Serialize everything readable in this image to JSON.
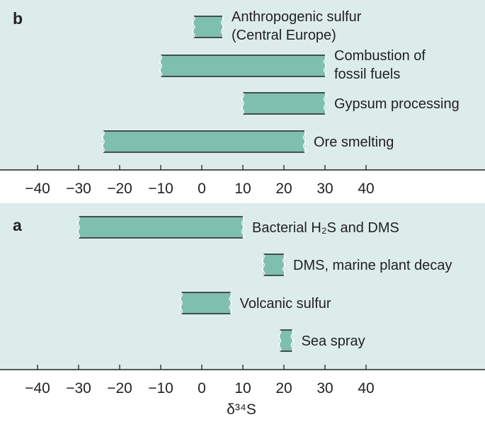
{
  "chart_data": [
    {
      "panel": "b",
      "type": "bar",
      "orientation": "horizontal-range",
      "xlim": [
        -48,
        66
      ],
      "ticks": [
        -40,
        -30,
        -20,
        -10,
        0,
        10,
        20,
        30,
        40
      ],
      "tick_labels": [
        "−40",
        "−30",
        "−20",
        "−10",
        "0",
        "10",
        "20",
        "30",
        "40"
      ],
      "bars": [
        {
          "label": [
            "Anthropogenic sulfur",
            "(Central Europe)"
          ],
          "min": -2,
          "max": 5
        },
        {
          "label": [
            "Combustion of",
            "fossil fuels"
          ],
          "min": -10,
          "max": 30
        },
        {
          "label": [
            "Gypsum processing"
          ],
          "min": 10,
          "max": 30
        },
        {
          "label": [
            "Ore smelting"
          ],
          "min": -24,
          "max": 25
        }
      ]
    },
    {
      "panel": "a",
      "type": "bar",
      "orientation": "horizontal-range",
      "xlim": [
        -48,
        66
      ],
      "ticks": [
        -40,
        -30,
        -20,
        -10,
        0,
        10,
        20,
        30,
        40
      ],
      "tick_labels": [
        "−40",
        "−30",
        "−20",
        "−10",
        "0",
        "10",
        "20",
        "30",
        "40"
      ],
      "bars": [
        {
          "label": [
            "Bacterial H₂S and DMS"
          ],
          "min": -30,
          "max": 10
        },
        {
          "label": [
            "DMS, marine plant decay"
          ],
          "min": 15,
          "max": 20
        },
        {
          "label": [
            "Volcanic sulfur"
          ],
          "min": -5,
          "max": 7
        },
        {
          "label": [
            "Sea spray"
          ],
          "min": 19,
          "max": 22
        }
      ],
      "xlabel": "δ³⁴S"
    }
  ],
  "colors": {
    "panel_bg": "#dcecea",
    "bar_fill": "#7fbfb0",
    "line": "#222222"
  }
}
